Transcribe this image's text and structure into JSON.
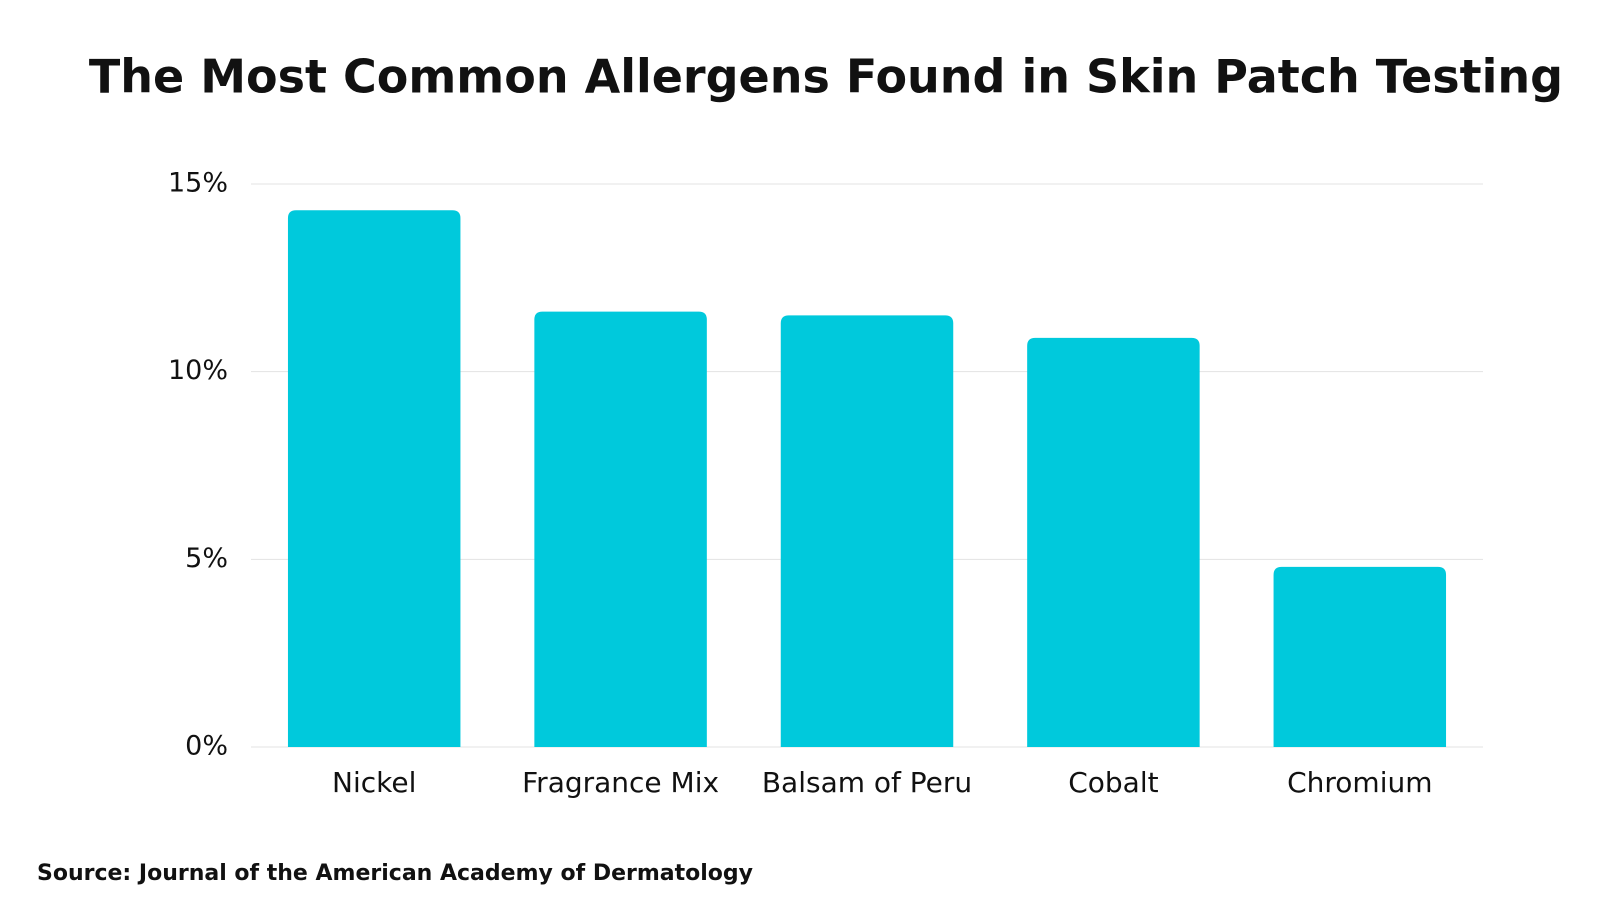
{
  "chart_data": {
    "type": "bar",
    "title": "The Most Common Allergens Found in Skin Patch Testing",
    "categories": [
      "Nickel",
      "Fragrance Mix",
      "Balsam of Peru",
      "Cobalt",
      "Chromium"
    ],
    "values": [
      14.3,
      11.6,
      11.5,
      10.9,
      4.8
    ],
    "color": "#00c9dc",
    "ylim": [
      0,
      15
    ],
    "yticks": [
      {
        "value": 0,
        "label": "0%"
      },
      {
        "value": 5,
        "label": "5%"
      },
      {
        "value": 10,
        "label": "10%"
      },
      {
        "value": 15,
        "label": "15%"
      }
    ],
    "grid": true,
    "source": "Source: Journal of the American Academy of Dermatology"
  }
}
